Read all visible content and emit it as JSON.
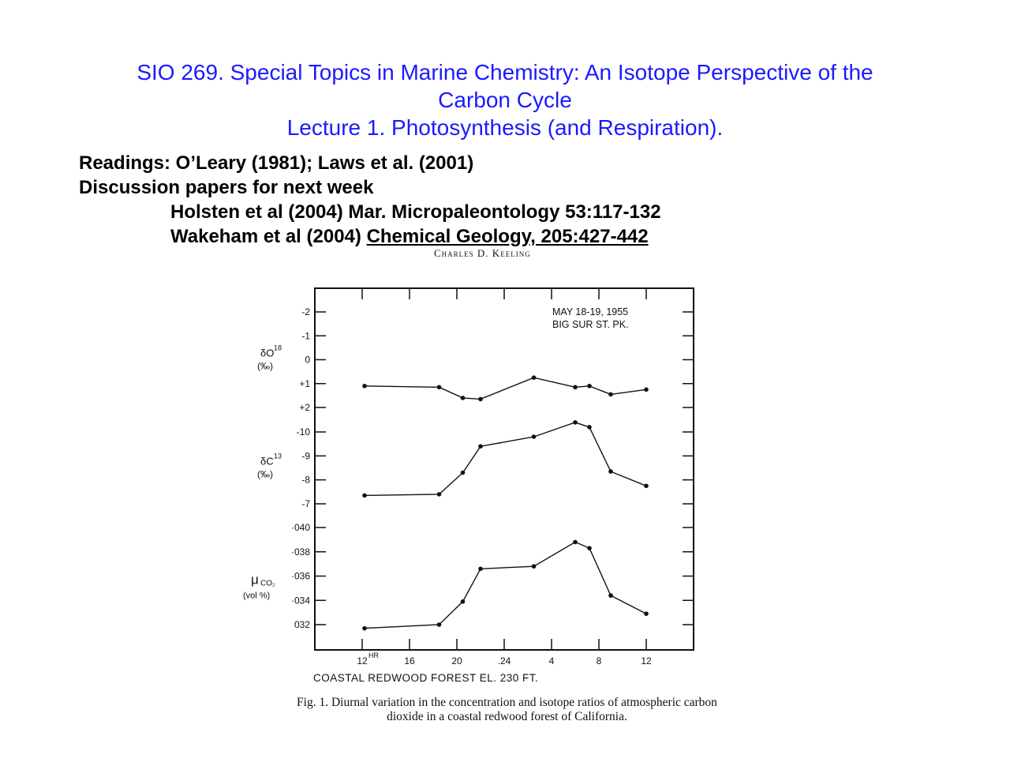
{
  "header": {
    "title_line1": "SIO 269. Special Topics in Marine Chemistry:  An Isotope Perspective of the",
    "title_line2": "Carbon Cycle",
    "title_line3": "Lecture 1. Photosynthesis (and Respiration)."
  },
  "readings": {
    "line1": "Readings: O’Leary (1981); Laws et al. (2001)",
    "line2": "Discussion papers for next week",
    "line3": "Holsten et al (2004) Mar. Micropaleontology 53:117-132",
    "line4_prefix": "Wakeham et al (2004) ",
    "line4_link": "Chemical Geology, 205:427-442"
  },
  "figure": {
    "author": "Charles D. Keeling",
    "caption_line1": "Fig. 1. Diurnal variation in the concentration and isotope ratios of atmospheric carbon",
    "caption_line2": "dioxide in a coastal redwood forest of California."
  },
  "chart_data": {
    "type": "line",
    "annotation_line1": "MAY 18-19, 1955",
    "annotation_line2": "BIG SUR ST. PK.",
    "xlabel": "COASTAL REDWOOD FOREST   EL. 230 FT.",
    "x_unit_label": "HR",
    "x_tick_values": [
      12,
      16,
      20,
      24,
      28,
      32,
      36
    ],
    "x_tick_labels": [
      "12",
      "16",
      "20",
      ".24",
      "4",
      "8",
      "12"
    ],
    "xlim": [
      12,
      36
    ],
    "grid": false,
    "panels": [
      {
        "name": "δO18",
        "label_main": "δO",
        "label_sup": "18",
        "label_unit": "(‰)",
        "ylim": [
          -2,
          2
        ],
        "inverted": true,
        "tick_values": [
          -2,
          -1,
          0,
          1,
          2
        ],
        "tick_labels": [
          "-2",
          "-1",
          "0",
          "+1",
          "+2"
        ],
        "x": [
          12.2,
          18.5,
          20.5,
          22,
          26.5,
          30,
          31.2,
          33,
          36
        ],
        "values": [
          1.1,
          1.15,
          1.6,
          1.65,
          0.75,
          1.15,
          1.1,
          1.45,
          1.25
        ]
      },
      {
        "name": "δC13",
        "label_main": "δC",
        "label_sup": "13",
        "label_unit": "(‰)",
        "ylim": [
          -10,
          -7
        ],
        "inverted": true,
        "tick_values": [
          -10,
          -9,
          -8,
          -7
        ],
        "tick_labels": [
          "-10",
          "-9",
          "-8",
          "-7"
        ],
        "x": [
          12.2,
          18.5,
          20.5,
          22,
          26.5,
          30,
          31.2,
          33,
          36
        ],
        "values": [
          -7.35,
          -7.4,
          -8.3,
          -9.4,
          -9.8,
          -10.4,
          -10.2,
          -8.35,
          -7.75
        ]
      },
      {
        "name": "μCO2",
        "label_main": "μ",
        "label_sub": "CO₂",
        "label_unit": "(vol %)",
        "ylim": [
          0.032,
          0.04
        ],
        "inverted": false,
        "tick_values": [
          0.032,
          0.034,
          0.036,
          0.038,
          0.04
        ],
        "tick_labels": [
          "032",
          "·034",
          "·036",
          "·038",
          "·040"
        ],
        "x": [
          12.2,
          18.5,
          20.5,
          22,
          26.5,
          30,
          31.2,
          33,
          36
        ],
        "values": [
          0.0317,
          0.032,
          0.0339,
          0.0366,
          0.0368,
          0.0388,
          0.0383,
          0.0344,
          0.0329
        ]
      }
    ]
  }
}
